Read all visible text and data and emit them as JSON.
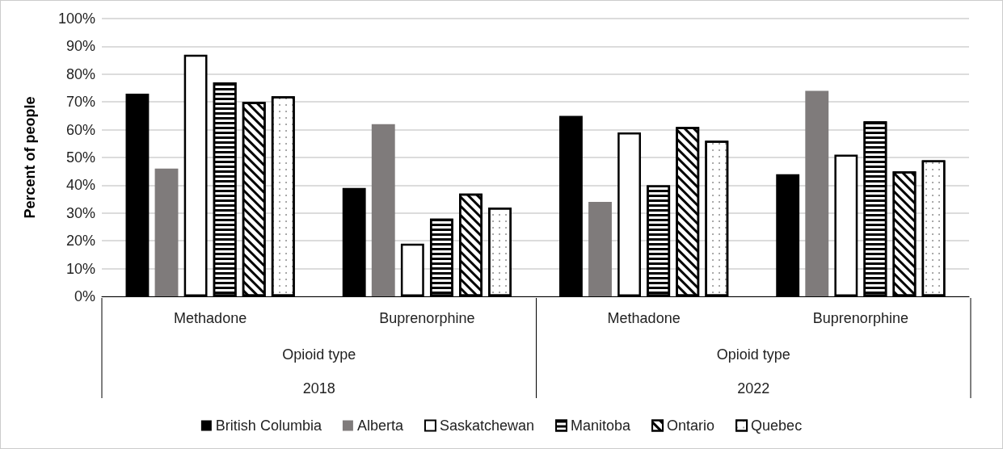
{
  "chart_data": {
    "type": "bar",
    "ylabel": "Percent of people",
    "xlabel": "Opioid type",
    "categories": [
      "Methadone",
      "Buprenorphine",
      "Methadone",
      "Buprenorphine"
    ],
    "annotations": [
      "2018",
      "2022"
    ],
    "ylim": [
      0,
      100
    ],
    "yticks": [
      {
        "value": 0,
        "label": "0%"
      },
      {
        "value": 10,
        "label": "10%"
      },
      {
        "value": 20,
        "label": "20%"
      },
      {
        "value": 30,
        "label": "30%"
      },
      {
        "value": 40,
        "label": "40%"
      },
      {
        "value": 50,
        "label": "50%"
      },
      {
        "value": 60,
        "label": "60%"
      },
      {
        "value": 70,
        "label": "70%"
      },
      {
        "value": 80,
        "label": "80%"
      },
      {
        "value": 90,
        "label": "90%"
      },
      {
        "value": 100,
        "label": "100%"
      }
    ],
    "grid": "y",
    "legend": "bottom",
    "series": [
      {
        "name": "British Columbia",
        "color": "#000000",
        "values": [
          73,
          39,
          65,
          44
        ]
      },
      {
        "name": "Alberta",
        "color": "#7f7b7b",
        "values": [
          46,
          62,
          34,
          74
        ]
      },
      {
        "name": "Saskatchewan",
        "color": "#ffffff",
        "values": [
          87,
          19,
          59,
          51
        ]
      },
      {
        "name": "Manitoba",
        "color": "#ffffff",
        "values": [
          77,
          28,
          40,
          63
        ]
      },
      {
        "name": "Ontario",
        "color": "#ffffff",
        "values": [
          70,
          37,
          61,
          45
        ]
      },
      {
        "name": "Quebec",
        "color": "#ffffff",
        "values": [
          72,
          32,
          56,
          49
        ]
      }
    ]
  }
}
